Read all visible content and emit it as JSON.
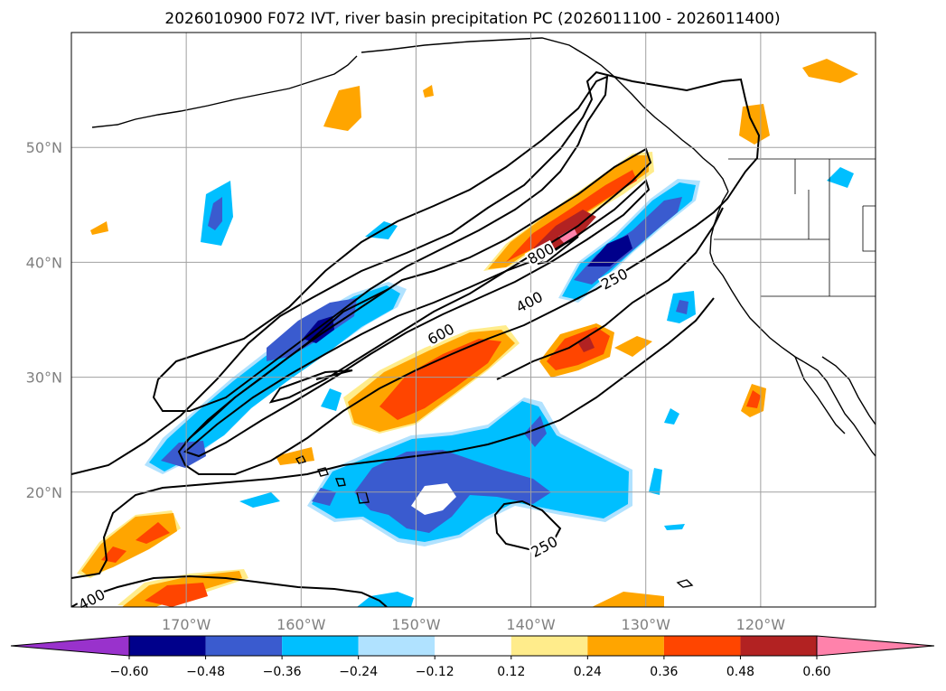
{
  "title": "2026010900 F072 IVT, river basin precipitation PC (2026011100 - 2026011400)",
  "map": {
    "lon_range": [
      -180,
      -110
    ],
    "lat_range": [
      10,
      60
    ],
    "lon_ticks": [
      {
        "value": -170,
        "label": "170°W"
      },
      {
        "value": -160,
        "label": "160°W"
      },
      {
        "value": -150,
        "label": "150°W"
      },
      {
        "value": -140,
        "label": "140°W"
      },
      {
        "value": -130,
        "label": "130°W"
      },
      {
        "value": -120,
        "label": "120°W"
      }
    ],
    "lat_ticks": [
      {
        "value": 20,
        "label": "20°N"
      },
      {
        "value": 30,
        "label": "30°N"
      },
      {
        "value": 40,
        "label": "40°N"
      },
      {
        "value": 50,
        "label": "50°N"
      }
    ],
    "grid": true
  },
  "ivt_contour_labels": [
    {
      "text": "800",
      "lon": -139,
      "lat": 40.5
    },
    {
      "text": "400",
      "lon": -140,
      "lat": 36.3
    },
    {
      "text": "250",
      "lon": -132.6,
      "lat": 38.3
    },
    {
      "text": "600",
      "lon": -147.7,
      "lat": 33.5
    },
    {
      "text": "250",
      "lon": -138.7,
      "lat": 15
    },
    {
      "text": "400",
      "lon": -178.1,
      "lat": 10.4
    }
  ],
  "colorbar": {
    "labels": [
      "−0.60",
      "−0.48",
      "−0.36",
      "−0.24",
      "−0.12",
      "0.12",
      "0.24",
      "0.36",
      "0.48",
      "0.60"
    ],
    "under_color": "#9932cc",
    "colors": [
      "#00008b",
      "#3a5bcf",
      "#00bfff",
      "#b0e2ff",
      "#ffffff",
      "#ffec8b",
      "#ffa500",
      "#ff4500",
      "#b22222",
      "#ff82ab"
    ],
    "over_color": "#ff82ab"
  }
}
